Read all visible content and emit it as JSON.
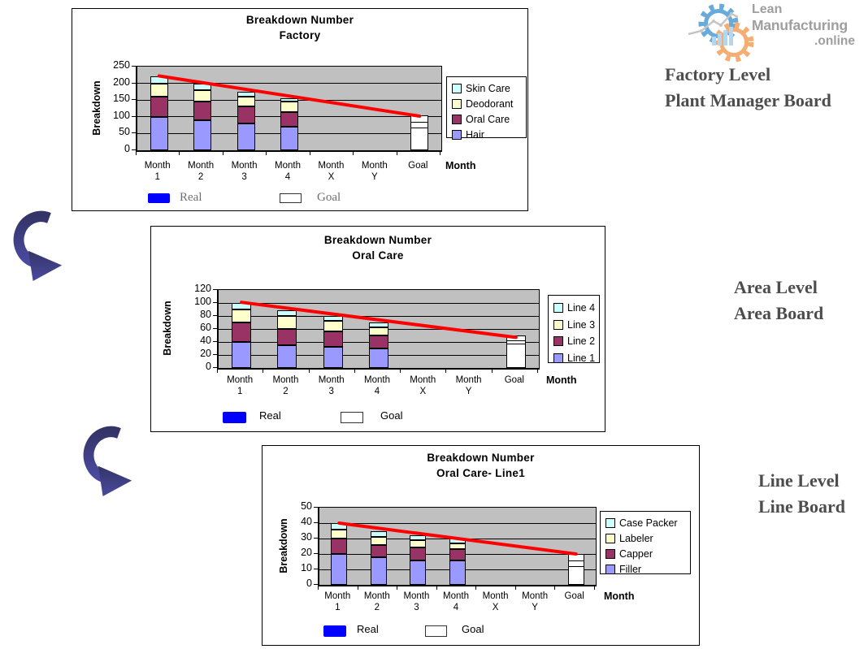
{
  "page": {
    "background": "#FFFFFF"
  },
  "logo": {
    "text_line1": "Lean",
    "text_line2": "Manufacturing",
    "text_line3": ".online",
    "gear_blue": "#66ABDB",
    "gear_orange": "#F4AD72",
    "bar_fill": "#B4D7EF",
    "line_gray": "#C6C6C6",
    "text_color": "#9E9E9E"
  },
  "annotations": {
    "color": "#4D4D4D",
    "factory": {
      "line1": "Factory Level",
      "line2": "Plant Manager Board"
    },
    "area": {
      "line1": "Area Level",
      "line2": "Area Board"
    },
    "line": {
      "line1": "Line Level",
      "line2": "Line Board"
    }
  },
  "arrows": {
    "color_dark": "#343467",
    "color_light": "#4A4AA0"
  },
  "chart_data": [
    {
      "id": "factory",
      "type": "bar",
      "stacked": true,
      "title": [
        "Breakdown Number",
        "Factory"
      ],
      "ylabel": "Breakdown",
      "xlabel": "Month",
      "ylim": [
        0,
        250
      ],
      "yticks": [
        0,
        50,
        100,
        150,
        200,
        250
      ],
      "grid": true,
      "plot_bg": "#C0C0C0",
      "categories": [
        [
          "Month",
          "1"
        ],
        [
          "Month",
          "2"
        ],
        [
          "Month",
          "3"
        ],
        [
          "Month",
          "4"
        ],
        [
          "Month",
          "X"
        ],
        [
          "Month",
          "Y"
        ],
        [
          "Goal",
          ""
        ]
      ],
      "series": [
        {
          "name": "Hair",
          "color": "#9999FF",
          "values": [
            100,
            90,
            80,
            70
          ]
        },
        {
          "name": "Oral Care",
          "color": "#993366",
          "values": [
            60,
            55,
            50,
            45
          ]
        },
        {
          "name": "Deodorant",
          "color": "#FFFFCC",
          "values": [
            40,
            35,
            30,
            30
          ]
        },
        {
          "name": "Skin Care",
          "color": "#CCFFFF",
          "values": [
            20,
            18,
            15,
            10
          ]
        }
      ],
      "legend": [
        "Skin Care",
        "Deodorant",
        "Oral Care",
        "Hair"
      ],
      "legend_position": "right",
      "goal_bar": {
        "category": "Goal",
        "top": 105,
        "lines": [
          64,
          80
        ],
        "fill": "#FFFFFF"
      },
      "trend_line": {
        "color": "#FF0000",
        "start": 222,
        "end": 102
      },
      "marker_legend": {
        "real_label": "Real",
        "goal_label": "Goal",
        "real_color": "#0000FF",
        "goal_fill": "#FFFFFF"
      }
    },
    {
      "id": "oral-care",
      "type": "bar",
      "stacked": true,
      "title": [
        "Breakdown Number",
        "Oral Care"
      ],
      "ylabel": "Breakdown",
      "xlabel": "Month",
      "ylim": [
        0,
        120
      ],
      "yticks": [
        0,
        20,
        40,
        60,
        80,
        100,
        120
      ],
      "grid": true,
      "plot_bg": "#C0C0C0",
      "categories": [
        [
          "Month",
          "1"
        ],
        [
          "Month",
          "2"
        ],
        [
          "Month",
          "3"
        ],
        [
          "Month",
          "4"
        ],
        [
          "Month",
          "X"
        ],
        [
          "Month",
          "Y"
        ],
        [
          "Goal",
          ""
        ]
      ],
      "series": [
        {
          "name": "Line 1",
          "color": "#9999FF",
          "values": [
            40,
            35,
            32,
            30
          ]
        },
        {
          "name": "Line 2",
          "color": "#993366",
          "values": [
            30,
            25,
            24,
            20
          ]
        },
        {
          "name": "Line 3",
          "color": "#FFFFCC",
          "values": [
            20,
            20,
            16,
            12
          ]
        },
        {
          "name": "Line 4",
          "color": "#CCFFFF",
          "values": [
            10,
            9,
            8,
            8
          ]
        }
      ],
      "legend": [
        "Line 4",
        "Line 3",
        "Line 2",
        "Line 1"
      ],
      "legend_position": "right",
      "goal_bar": {
        "category": "Goal",
        "top": 50,
        "lines": [
          35,
          40
        ],
        "fill": "#FFFFFF"
      },
      "trend_line": {
        "color": "#FF0000",
        "start": 101,
        "end": 47
      },
      "marker_legend": {
        "real_label": "Real",
        "goal_label": "Goal",
        "real_color": "#0000FF",
        "goal_fill": "#FFFFFF"
      }
    },
    {
      "id": "oral-care-line1",
      "type": "bar",
      "stacked": true,
      "title": [
        "Breakdown Number",
        "Oral Care- Line1"
      ],
      "ylabel": "Breakdown",
      "xlabel": "Month",
      "ylim": [
        0,
        50
      ],
      "yticks": [
        0,
        10,
        20,
        30,
        40,
        50
      ],
      "grid": true,
      "plot_bg": "#C0C0C0",
      "categories": [
        [
          "Month",
          "1"
        ],
        [
          "Month",
          "2"
        ],
        [
          "Month",
          "3"
        ],
        [
          "Month",
          "4"
        ],
        [
          "Month",
          "X"
        ],
        [
          "Month",
          "Y"
        ],
        [
          "Goal",
          ""
        ]
      ],
      "series": [
        {
          "name": "Filler",
          "color": "#9999FF",
          "values": [
            20,
            18,
            16,
            16
          ]
        },
        {
          "name": "Capper",
          "color": "#993366",
          "values": [
            10,
            8,
            8,
            7
          ]
        },
        {
          "name": "Labeler",
          "color": "#FFFFCC",
          "values": [
            6,
            5,
            5,
            4
          ]
        },
        {
          "name": "Case Packer",
          "color": "#CCFFFF",
          "values": [
            4,
            4,
            3,
            3
          ]
        }
      ],
      "legend": [
        "Case Packer",
        "Labeler",
        "Capper",
        "Filler"
      ],
      "legend_position": "right",
      "goal_bar": {
        "category": "Goal",
        "top": 20,
        "lines": [
          11,
          15
        ],
        "fill": "#FFFFFF"
      },
      "trend_line": {
        "color": "#FF0000",
        "start": 40,
        "end": 20
      },
      "marker_legend": {
        "real_label": "Real",
        "goal_label": "Goal",
        "real_color": "#0000FF",
        "goal_fill": "#FFFFFF"
      }
    }
  ]
}
